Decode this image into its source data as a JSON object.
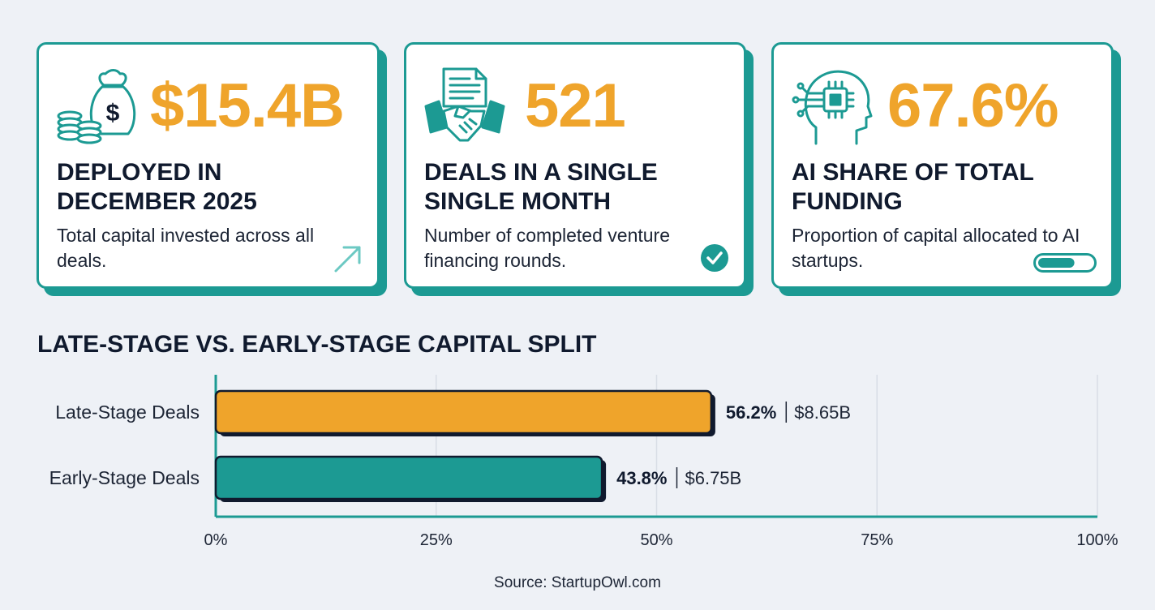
{
  "cards": [
    {
      "value": "$15.4B",
      "title": "DEPLOYED IN DECEMBER 2025",
      "description": "Total capital invested across all deals.",
      "icon": "money-bag-coins-icon",
      "badge_icon": "trend-arrow-icon"
    },
    {
      "value": "521",
      "title": "DEALS IN A SINGLE SINGLE MONTH",
      "description": "Number of completed venture financing rounds.",
      "icon": "handshake-document-icon",
      "badge_icon": "check-circle-icon"
    },
    {
      "value": "67.6%",
      "title": "AI SHARE OF TOTAL FUNDING",
      "description": "Proportion of capital allocated to AI startups.",
      "icon": "ai-head-chip-icon",
      "badge_icon": "progress-pill-icon",
      "badge_fill": 0.676
    }
  ],
  "section_title": "LATE-STAGE VS. EARLY-STAGE CAPITAL SPLIT",
  "chart_data": {
    "type": "bar",
    "orientation": "horizontal",
    "title": "LATE-STAGE VS. EARLY-STAGE CAPITAL SPLIT",
    "categories": [
      "Late-Stage Deals",
      "Early-Stage Deals"
    ],
    "values": [
      56.2,
      43.8
    ],
    "value_labels": [
      "56.2%",
      "43.8%"
    ],
    "amount_labels": [
      "$8.65B",
      "$6.75B"
    ],
    "colors": [
      "#efa42b",
      "#1c9a93"
    ],
    "xlim": [
      0,
      100
    ],
    "xticks": [
      0,
      25,
      50,
      75,
      100
    ],
    "xtick_labels": [
      "0%",
      "25%",
      "50%",
      "75%",
      "100%"
    ],
    "grid": true
  },
  "source": "Source: StartupOwl.com",
  "colors": {
    "accent_orange": "#efa42b",
    "accent_teal": "#1c9a93",
    "text_dark": "#101a2e",
    "background": "#eef1f6"
  }
}
